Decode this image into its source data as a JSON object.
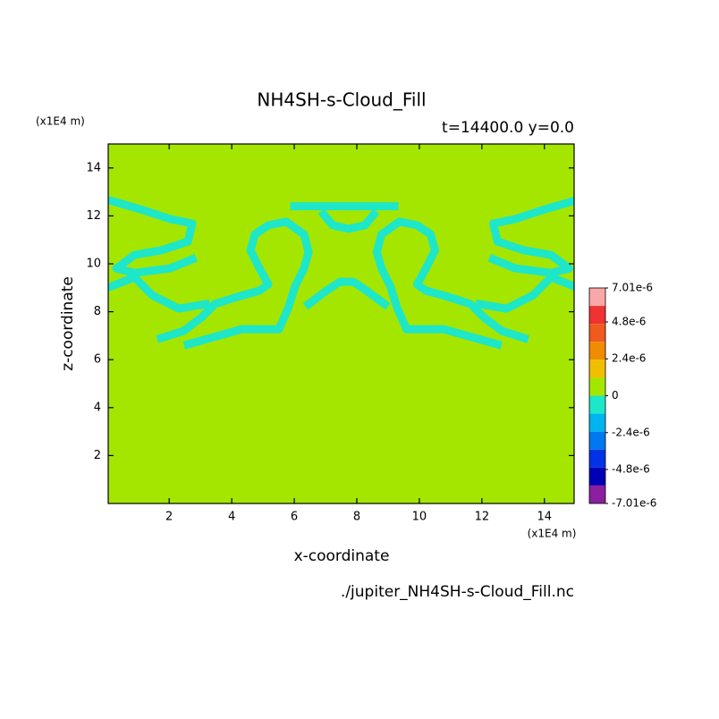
{
  "chart_data": {
    "type": "contour",
    "title": "NH4SH-s-Cloud_Fill",
    "subtitle": "t=14400.0 y=0.0",
    "xlabel": "x-coordinate",
    "ylabel": "z-coordinate",
    "x_unit": "(x1E4 m)",
    "y_unit": "(x1E4 m)",
    "source": "./jupiter_NH4SH-s-Cloud_Fill.nc",
    "xlim": [
      0.05,
      14.95
    ],
    "ylim": [
      0,
      15
    ],
    "xticks": [
      2,
      4,
      6,
      8,
      10,
      12,
      14
    ],
    "yticks": [
      2,
      4,
      6,
      8,
      10,
      12,
      14
    ],
    "fill_color": "#a4e600",
    "contours": [
      {
        "color": "#1ee6c8",
        "x": [
          6.0,
          7.0,
          7.5,
          8.2,
          8.7,
          9.2
        ],
        "y": [
          12.4,
          12.4,
          12.4,
          12.4,
          12.4,
          12.4
        ]
      },
      {
        "color": "#1ee6c8",
        "x": [
          6.94,
          7.23,
          7.74,
          8.26,
          8.54
        ],
        "y": [
          12.06,
          11.61,
          11.46,
          11.61,
          12.06
        ]
      },
      {
        "color": "#1ee6c8",
        "x": [
          1.74,
          2.46,
          3.03,
          3.46,
          4.17,
          4.89,
          5.17,
          4.89,
          4.6,
          4.74,
          5.17,
          5.74,
          6.31,
          6.46,
          6.31,
          6.03,
          5.8,
          5.51,
          4.31,
          3.31,
          2.6
        ],
        "y": [
          6.9,
          7.2,
          7.76,
          8.32,
          8.62,
          8.88,
          9.14,
          9.81,
          10.56,
          11.23,
          11.61,
          11.76,
          11.23,
          10.49,
          9.81,
          9.07,
          8.13,
          7.27,
          7.27,
          6.9,
          6.64
        ]
      },
      {
        "color": "#1ee6c8",
        "x": [
          13.36,
          12.64,
          12.07,
          11.64,
          10.93,
          10.21,
          9.93,
          10.21,
          10.5,
          10.36,
          9.93,
          9.36,
          8.79,
          8.64,
          8.79,
          9.07,
          9.3,
          9.59,
          10.79,
          11.79,
          12.5
        ],
        "y": [
          6.9,
          7.2,
          7.76,
          8.32,
          8.62,
          8.88,
          9.14,
          9.81,
          10.56,
          11.23,
          11.61,
          11.76,
          11.23,
          10.49,
          9.81,
          9.07,
          8.13,
          7.27,
          7.27,
          6.9,
          6.64
        ]
      },
      {
        "color": "#1ee6c8",
        "x": [
          6.46,
          7.03,
          7.46,
          7.89,
          8.31,
          8.89
        ],
        "y": [
          8.32,
          8.88,
          9.25,
          9.25,
          8.88,
          8.32
        ]
      },
      {
        "color": "#1ee6c8",
        "x": [
          0.17,
          1.17,
          2.03,
          2.74,
          2.6,
          1.74,
          0.89,
          0.31,
          0.89,
          2.03,
          2.74
        ],
        "y": [
          12.62,
          12.24,
          11.87,
          11.68,
          10.93,
          10.56,
          10.37,
          9.81,
          9.62,
          9.81,
          10.19
        ]
      },
      {
        "color": "#1ee6c8",
        "x": [
          0.17,
          0.89,
          1.46,
          2.31,
          3.17
        ],
        "y": [
          9.07,
          9.44,
          8.69,
          8.13,
          8.32
        ]
      },
      {
        "color": "#1ee6c8",
        "x": [
          14.93,
          13.93,
          13.07,
          12.36,
          12.5,
          13.36,
          14.21,
          14.79,
          14.21,
          13.07,
          12.36
        ],
        "y": [
          12.62,
          12.24,
          11.87,
          11.68,
          10.93,
          10.56,
          10.37,
          9.81,
          9.62,
          9.81,
          10.19
        ]
      },
      {
        "color": "#1ee6c8",
        "x": [
          14.93,
          14.21,
          13.64,
          12.79,
          11.93
        ],
        "y": [
          9.07,
          9.44,
          8.69,
          8.13,
          8.32
        ]
      }
    ],
    "colorbar": {
      "lim": [
        -7.01e-06,
        7.01e-06
      ],
      "ticks": [
        {
          "value": 7.01e-06,
          "label": "7.01e-6"
        },
        {
          "value": 4.8e-06,
          "label": "4.8e-6"
        },
        {
          "value": 2.4e-06,
          "label": "2.4e-6"
        },
        0,
        {
          "value": -2.4e-06,
          "label": "-2.4e-6"
        },
        {
          "value": -4.8e-06,
          "label": "-4.8e-6"
        },
        {
          "value": -7.01e-06,
          "label": "-7.01e-6"
        }
      ],
      "colors": [
        "#f8a8a8",
        "#f03232",
        "#f05a1e",
        "#f08c00",
        "#f0c000",
        "#a4e600",
        "#1ee6c8",
        "#00b4f0",
        "#0078f0",
        "#0032e6",
        "#0000b4",
        "#8c1ea0"
      ]
    }
  }
}
